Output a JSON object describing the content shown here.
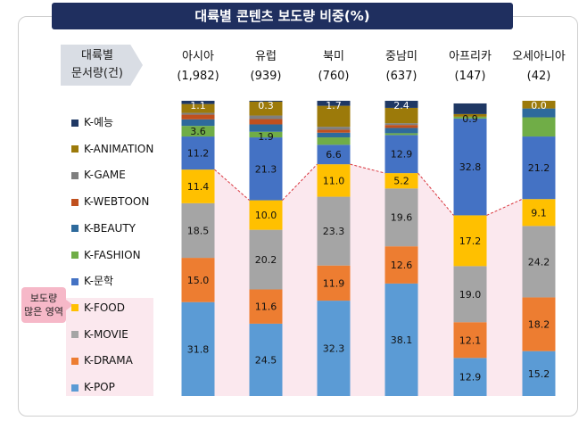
{
  "chart_data": {
    "type": "stacked-bar",
    "title": "대륙별 콘텐츠 보도량 비중(%)",
    "header_label": [
      "대륙별",
      "문서량(건)"
    ],
    "categories": [
      "아시아",
      "유럽",
      "북미",
      "중남미",
      "아프리카",
      "오세아니아"
    ],
    "counts": [
      "(1,982)",
      "(939)",
      "(760)",
      "(637)",
      "(147)",
      "(42)"
    ],
    "ylim": [
      0,
      100
    ],
    "series": [
      {
        "name": "K-POP",
        "color": "#5b9bd5",
        "values": [
          31.8,
          24.5,
          32.3,
          38.1,
          12.9,
          15.2
        ],
        "labels": [
          "31.8",
          "24.5",
          "32.3",
          "38.1",
          "12.9",
          "15.2"
        ]
      },
      {
        "name": "K-DRAMA",
        "color": "#ed7d31",
        "values": [
          15.0,
          11.6,
          11.9,
          12.6,
          12.1,
          18.2
        ],
        "labels": [
          "15.0",
          "11.6",
          "11.9",
          "12.6",
          "12.1",
          "18.2"
        ]
      },
      {
        "name": "K-MOVIE",
        "color": "#a5a5a5",
        "values": [
          18.5,
          20.2,
          23.3,
          19.6,
          19.0,
          24.2
        ],
        "labels": [
          "18.5",
          "20.2",
          "23.3",
          "19.6",
          "19.0",
          "24.2"
        ]
      },
      {
        "name": "K-FOOD",
        "color": "#ffc000",
        "values": [
          11.4,
          10.0,
          11.0,
          5.2,
          17.2,
          9.1
        ],
        "labels": [
          "11.4",
          "10.0",
          "11.0",
          "5.2",
          "17.2",
          "9.1"
        ]
      },
      {
        "name": "K-문학",
        "color": "#4472c4",
        "values": [
          11.2,
          21.3,
          6.6,
          12.9,
          32.8,
          21.2
        ],
        "labels": [
          "11.2",
          "21.3",
          "6.6",
          "12.9",
          "32.8",
          "21.2"
        ]
      },
      {
        "name": "K-FASHION",
        "color": "#70ad47",
        "values": [
          3.6,
          1.9,
          2.5,
          0.6,
          0.6,
          6.5
        ],
        "labels": [
          "3.6",
          "1.9",
          "",
          "",
          "",
          ""
        ]
      },
      {
        "name": "K-BEAUTY",
        "color": "#2e6a9c",
        "values": [
          2.2,
          2.5,
          1.6,
          1.8,
          0,
          3.0
        ],
        "labels": [
          "",
          "",
          "",
          "",
          "",
          ""
        ]
      },
      {
        "name": "K-WEBTOON",
        "color": "#c0501e",
        "values": [
          1.6,
          1.8,
          1.0,
          1.0,
          0,
          0
        ],
        "labels": [
          "",
          "",
          "",
          "",
          "",
          ""
        ]
      },
      {
        "name": "K-GAME",
        "color": "#7f7f7f",
        "values": [
          0.6,
          1.2,
          1.0,
          0.6,
          0,
          0
        ],
        "labels": [
          "",
          "",
          "",
          "",
          "",
          ""
        ]
      },
      {
        "name": "K-ANIMATION",
        "color": "#9c7a0a",
        "values": [
          3.0,
          4.7,
          7.1,
          5.2,
          0.9,
          2.6
        ],
        "labels": [
          "",
          "",
          "",
          "",
          "0.9",
          ""
        ]
      },
      {
        "name": "K-예능",
        "color": "#1f3864",
        "values": [
          1.1,
          0.3,
          1.7,
          2.4,
          3.6,
          0.0
        ],
        "labels": [
          "1.1",
          "0.3",
          "1.7",
          "2.4",
          "",
          "0.0"
        ]
      }
    ],
    "highlight": {
      "label": [
        "보도량",
        "많은 영역"
      ],
      "series": [
        "K-FOOD",
        "K-MOVIE",
        "K-DRAMA",
        "K-POP"
      ],
      "color": "#fbe8ee",
      "line_color": "#d9363e"
    },
    "legend_position": "left"
  }
}
